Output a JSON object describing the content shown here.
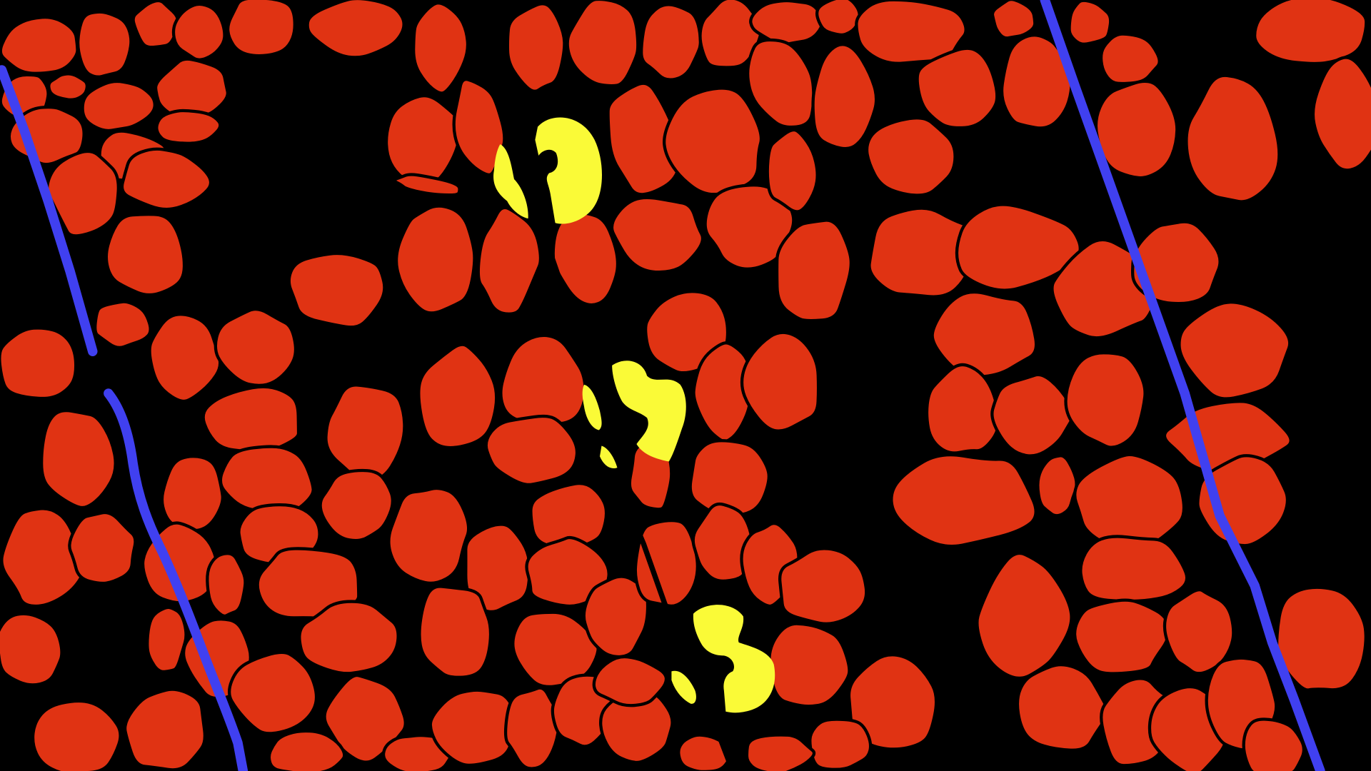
{
  "colors": {
    "background": "#000000",
    "red_region": "#e03313",
    "blue_line": "#4040f0",
    "yellow_region": "#fafa37",
    "crack": "#000000"
  }
}
